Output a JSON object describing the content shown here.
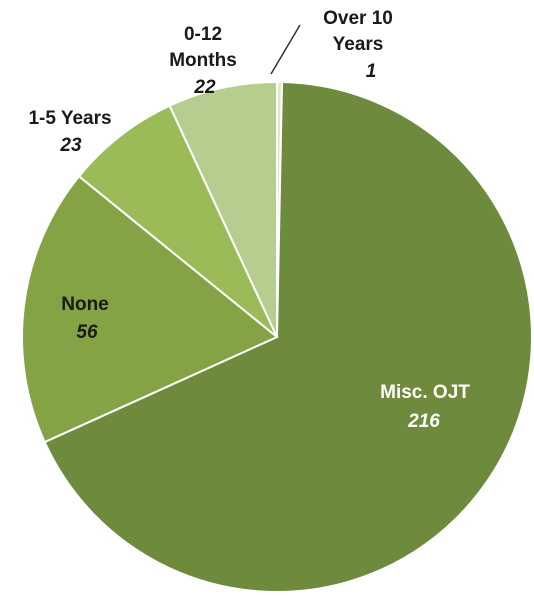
{
  "chart_data": {
    "type": "pie",
    "title": "",
    "slices": [
      {
        "label": "Over 10 Years",
        "value": 1,
        "color": "#dfe8cc"
      },
      {
        "label": "Misc. OJT",
        "value": 216,
        "color": "#6e8b3d"
      },
      {
        "label": "None",
        "value": 56,
        "color": "#84a345"
      },
      {
        "label": "1-5 Years",
        "value": 23,
        "color": "#9bbb59"
      },
      {
        "label": "0-12 Months",
        "value": 22,
        "color": "#b5cd8f"
      }
    ],
    "start_angle_deg": 0,
    "direction": "clockwise",
    "data_labels": "label-and-value",
    "legend": "none"
  }
}
